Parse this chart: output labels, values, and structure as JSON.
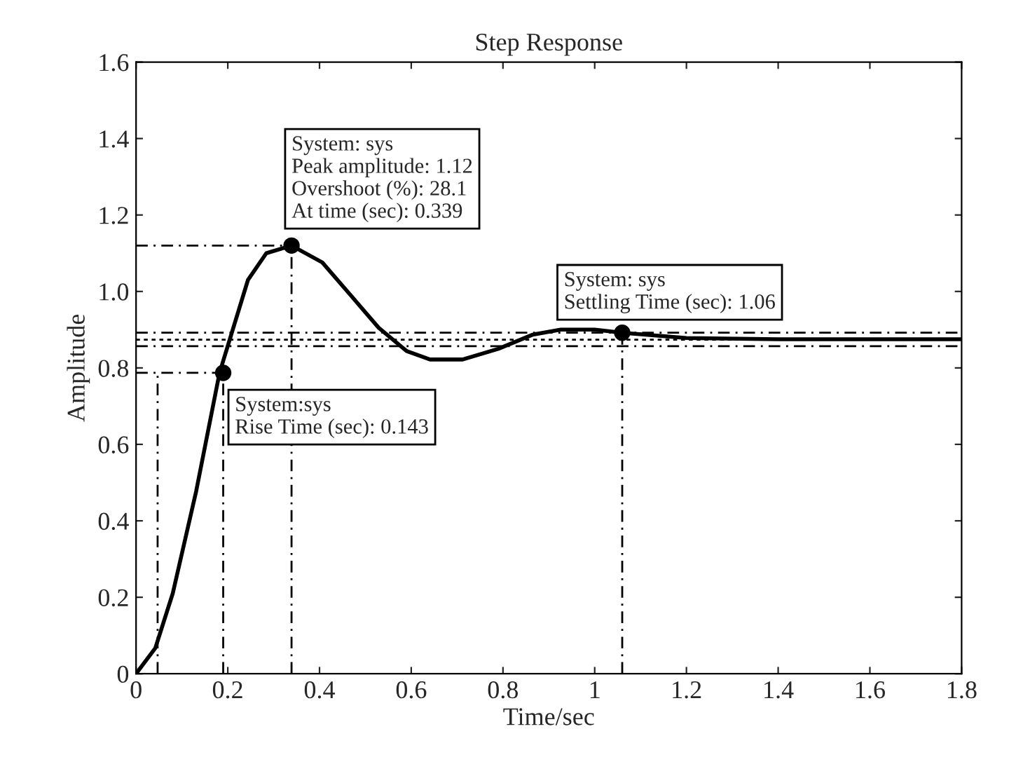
{
  "chart_data": {
    "type": "line",
    "title": "Step Response",
    "xlabel": "Time/sec",
    "ylabel": "Amplitude",
    "series": [
      {
        "color": "#000000",
        "x": [
          0,
          0.042,
          0.08,
          0.131,
          0.182,
          0.244,
          0.284,
          0.339,
          0.406,
          0.468,
          0.529,
          0.59,
          0.641,
          0.712,
          0.79,
          0.865,
          0.926,
          1.0,
          1.06,
          1.2,
          1.4,
          1.6,
          1.8
        ],
        "values": [
          0,
          0.067,
          0.21,
          0.477,
          0.787,
          1.03,
          1.1,
          1.12,
          1.076,
          0.99,
          0.905,
          0.844,
          0.822,
          0.822,
          0.85,
          0.887,
          0.9,
          0.9,
          0.892,
          0.878,
          0.875,
          0.875,
          0.875
        ],
        "line_style": "solid",
        "marker": "none"
      },
      {
        "type": "scatter",
        "color": "#000000",
        "x": [
          0.19,
          0.339,
          1.06
        ],
        "values": [
          0.787,
          1.12,
          0.892
        ],
        "marker": "circle"
      },
      {
        "color": "#000000",
        "x": [
          0.047,
          0.047
        ],
        "values": [
          0,
          0.787
        ],
        "line_style": "dashed",
        "marker": "none"
      },
      {
        "color": "#000000",
        "x": [
          0.19,
          0.19
        ],
        "values": [
          0,
          0.787
        ],
        "line_style": "dashed",
        "marker": "none"
      },
      {
        "color": "#000000",
        "x": [
          0,
          0.19
        ],
        "values": [
          0.787,
          0.787
        ],
        "line_style": "dashed",
        "marker": "none"
      },
      {
        "color": "#000000",
        "x": [
          0,
          0.339
        ],
        "values": [
          1.12,
          1.12
        ],
        "line_style": "dashed",
        "marker": "none"
      },
      {
        "color": "#000000",
        "x": [
          0.339,
          0.339
        ],
        "values": [
          0,
          1.12
        ],
        "line_style": "dashed",
        "marker": "none"
      },
      {
        "color": "#000000",
        "x": [
          1.06,
          1.06
        ],
        "values": [
          0,
          0.892
        ],
        "line_style": "dashed",
        "marker": "none"
      }
    ],
    "ref_lines": [
      {
        "axis": "y",
        "value": 0.874,
        "color": "#000000",
        "line_style": "dotted"
      },
      {
        "axis": "y",
        "value": 0.892,
        "color": "#000000",
        "line_style": "dashed"
      },
      {
        "axis": "y",
        "value": 0.857,
        "color": "#000000",
        "line_style": "dashed"
      }
    ],
    "annotations": [
      {
        "text": "System:sys\nRise Time (sec): 0.143",
        "x": 0.19,
        "y": 0.787
      },
      {
        "text": "System: sys\nPeak amplitude: 1.12\nOvershoot (%): 28.1\nAt time (sec): 0.339",
        "x": 0.339,
        "y": 1.12
      },
      {
        "text": "System: sys\nSettling Time (sec): 1.06",
        "x": 1.06,
        "y": 0.892
      }
    ],
    "xlim": [
      0,
      1.8
    ],
    "xticks": [
      0,
      0.2,
      0.4,
      0.6,
      0.8,
      {
        "value": 1,
        "label": "1"
      },
      1.2,
      1.4,
      1.6,
      1.8
    ],
    "ylim": [
      0,
      1.6
    ],
    "yticks": [
      0,
      0.2,
      0.4,
      0.6,
      0.8,
      {
        "value": 1,
        "label": "1.0"
      },
      1.2,
      1.4,
      1.6
    ],
    "grid": false,
    "legend": false
  }
}
